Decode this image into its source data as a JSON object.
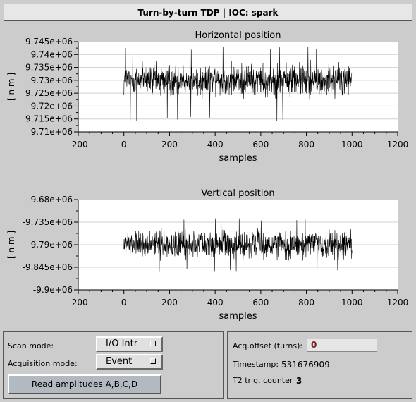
{
  "window": {
    "title": "Turn-by-turn TDP | IOC: spark"
  },
  "chart_data": [
    {
      "type": "line",
      "title": "Horizontal position",
      "xlabel": "samples",
      "ylabel": "[ n m ]",
      "xlim": [
        -200,
        1200
      ],
      "ylim": [
        9710000,
        9745000
      ],
      "x_ticks": [
        "-200",
        "0",
        "200",
        "400",
        "600",
        "800",
        "1000",
        "1200"
      ],
      "y_ticks": [
        "9.71e+06",
        "9.715e+06",
        "9.72e+06",
        "9.725e+06",
        "9.73e+06",
        "9.735e+06",
        "9.74e+06",
        "9.745e+06"
      ],
      "grid": true,
      "series": [
        {
          "x_range": [
            0,
            1000
          ],
          "n_points": 1000,
          "mean": 9730000,
          "typical_min": 9722000,
          "typical_max": 9738000,
          "extreme_min": 9714000,
          "extreme_max": 9743000
        }
      ]
    },
    {
      "type": "line",
      "title": "Vertical position",
      "xlabel": "samples",
      "ylabel": "[ n m ]",
      "xlim": [
        -200,
        1200
      ],
      "ylim": [
        -9900000,
        -9680000
      ],
      "x_ticks": [
        "-200",
        "0",
        "200",
        "400",
        "600",
        "800",
        "1000",
        "1200"
      ],
      "y_ticks": [
        "-9.9e+06",
        "-9.845e+06",
        "-9.79e+06",
        "-9.735e+06",
        "-9.68e+06"
      ],
      "grid": true,
      "series": [
        {
          "x_range": [
            0,
            1000
          ],
          "n_points": 1000,
          "mean": -9790000,
          "typical_min": -9832000,
          "typical_max": -9748000,
          "extreme_min": -9855000,
          "extreme_max": -9725000
        }
      ]
    }
  ],
  "controls": {
    "scan_mode_label": "Scan mode:",
    "scan_mode_value": "I/O Intr",
    "acq_mode_label": "Acquisition mode:",
    "acq_mode_value": "Event",
    "read_button": "Read amplitudes A,B,C,D"
  },
  "status": {
    "acq_offset_label": "Acq.offset (turns):",
    "acq_offset_value": "0",
    "timestamp_label": "Timestamp:",
    "timestamp_value": "531676909",
    "t2_label": "T2 trig. counter",
    "t2_value": "3"
  }
}
